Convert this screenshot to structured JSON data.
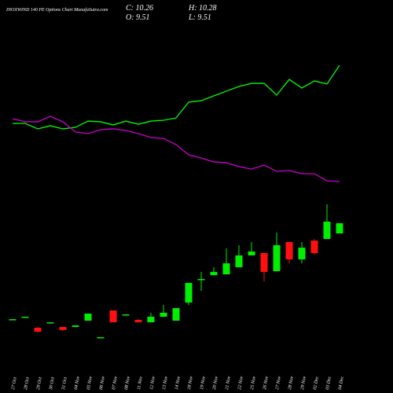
{
  "chart_data": {
    "type": "candlestick",
    "title": "INOXWIND 140 PE Options Chart MunafaSutra.com",
    "ohlc_text": {
      "close": "C: 10.26",
      "high": "H: 10.28",
      "open": "O: 9.51",
      "low": "L: 9.51"
    },
    "categories": [
      "27 Oct",
      "28 Oct",
      "29 Oct",
      "30 Oct",
      "31 Oct",
      "04 Nov",
      "05 Nov",
      "06 Nov",
      "07 Nov",
      "08 Nov",
      "11 Nov",
      "12 Nov",
      "13 Nov",
      "14 Nov",
      "18 Nov",
      "19 Nov",
      "20 Nov",
      "21 Nov",
      "22 Nov",
      "25 Nov",
      "26 Nov",
      "27 Nov",
      "28 Nov",
      "29 Nov",
      "02 Dec",
      "03 Dec",
      "04 Dec"
    ],
    "open": [
      3.17,
      3.34,
      2.59,
      2.94,
      2.65,
      2.65,
      3.11,
      1.84,
      3.86,
      3.52,
      3.17,
      2.99,
      3.4,
      3.11,
      4.44,
      6.11,
      6.45,
      6.51,
      7.03,
      7.9,
      8.07,
      6.74,
      8.88,
      7.61,
      8.99,
      9.11,
      9.51
    ],
    "high": [
      3.22,
      3.4,
      2.65,
      2.99,
      2.65,
      2.76,
      3.63,
      1.9,
      3.86,
      3.57,
      3.22,
      3.69,
      4.26,
      4.03,
      5.88,
      6.69,
      7.03,
      8.42,
      8.65,
      8.88,
      8.07,
      9.57,
      8.88,
      8.88,
      9.11,
      11.65,
      10.28
    ],
    "low": [
      3.17,
      3.34,
      2.24,
      2.94,
      2.36,
      2.65,
      3.11,
      1.84,
      2.99,
      3.52,
      2.99,
      2.99,
      3.4,
      3.11,
      4.26,
      5.3,
      6.45,
      6.51,
      7.03,
      7.9,
      5.99,
      6.74,
      7.32,
      7.32,
      7.95,
      9.11,
      9.51
    ],
    "close": [
      3.22,
      3.4,
      2.3,
      2.99,
      2.42,
      2.76,
      3.63,
      1.9,
      2.99,
      3.57,
      2.99,
      3.4,
      3.69,
      4.03,
      5.88,
      6.17,
      6.69,
      7.32,
      7.9,
      8.19,
      6.69,
      8.65,
      7.61,
      8.47,
      8.07,
      10.38,
      10.26
    ],
    "up_color": "#00ee00",
    "down_color": "#ff1010",
    "series": [
      {
        "color": "#00ff00",
        "values": [
          17.59,
          17.59,
          17.19,
          17.42,
          17.19,
          17.3,
          17.76,
          17.71,
          17.48,
          17.76,
          17.53,
          17.76,
          17.82,
          17.99,
          19.15,
          19.26,
          19.61,
          19.96,
          20.3,
          20.53,
          20.53,
          19.67,
          20.82,
          20.19,
          20.71,
          20.48,
          21.86
        ]
      },
      {
        "color": "#cc00cc",
        "values": [
          17.94,
          17.71,
          17.71,
          18.11,
          17.71,
          16.96,
          16.84,
          17.13,
          17.19,
          17.07,
          16.84,
          16.55,
          16.49,
          16.03,
          15.28,
          15.05,
          14.76,
          14.71,
          14.42,
          14.24,
          14.53,
          14.07,
          14.13,
          13.9,
          13.9,
          13.38,
          13.32
        ]
      }
    ],
    "ylim": [
      -2.2,
      26.65
    ]
  }
}
